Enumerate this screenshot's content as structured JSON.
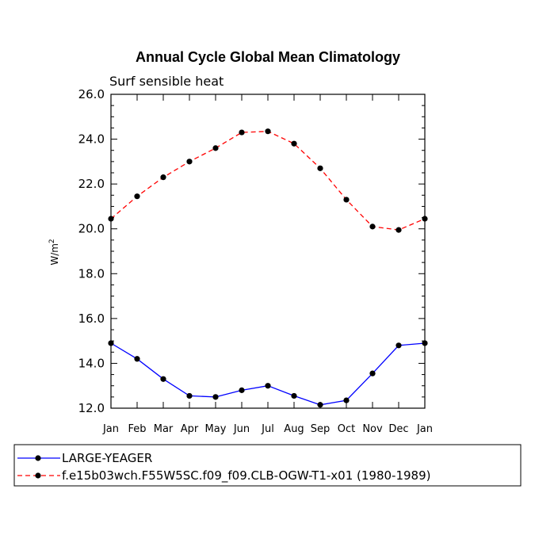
{
  "chart_data": {
    "type": "line",
    "title": "Annual Cycle Global Mean Climatology",
    "subtitle": "Surf sensible heat",
    "ylabel_base": "W/m",
    "ylabel_sup": "2",
    "xlabel": "",
    "categories": [
      "Jan",
      "Feb",
      "Mar",
      "Apr",
      "May",
      "Jun",
      "Jul",
      "Aug",
      "Sep",
      "Oct",
      "Nov",
      "Dec",
      "Jan"
    ],
    "ylim": [
      12.0,
      26.0
    ],
    "yticks": [
      "12.0",
      "14.0",
      "16.0",
      "18.0",
      "20.0",
      "22.0",
      "24.0",
      "26.0"
    ],
    "grid": false,
    "legend_position": "bottom",
    "series": [
      {
        "name": "LARGE-YEAGER",
        "color": "#0000ff",
        "dash": "solid",
        "values": [
          14.9,
          14.2,
          13.3,
          12.55,
          12.5,
          12.8,
          13.0,
          12.55,
          12.15,
          12.35,
          13.55,
          14.8,
          14.9
        ]
      },
      {
        "name": "f.e15b03wch.F55W5SC.f09_f09.CLB-OGW-T1-x01 (1980-1989)",
        "color": "#ff0000",
        "dash": "dashed",
        "values": [
          20.45,
          21.45,
          22.3,
          23.0,
          23.6,
          24.3,
          24.35,
          23.8,
          22.7,
          21.3,
          20.1,
          19.95,
          20.45
        ]
      }
    ]
  }
}
